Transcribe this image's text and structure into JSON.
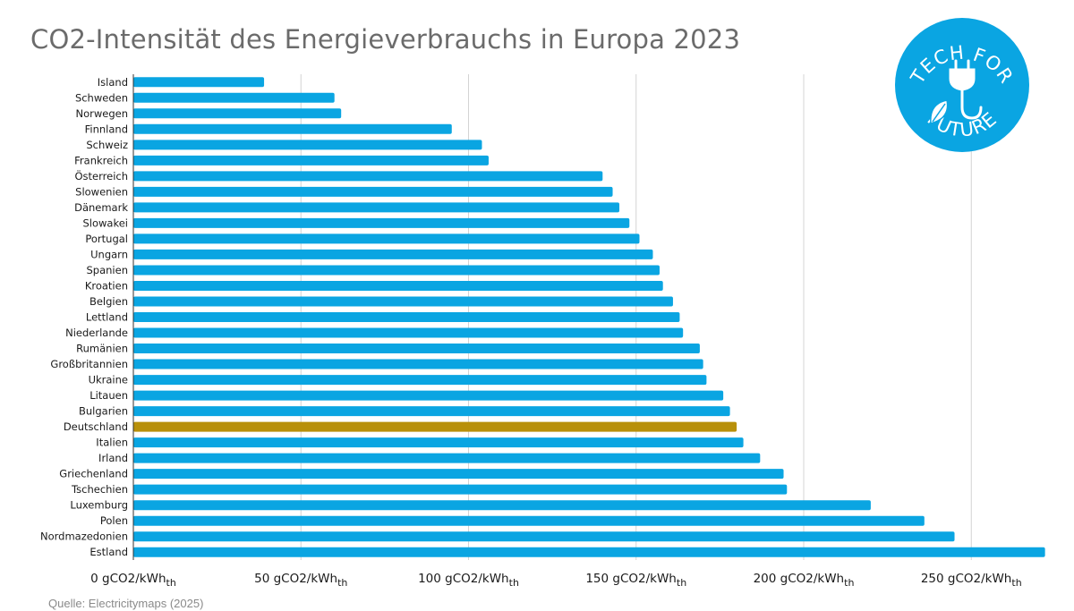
{
  "title": "CO2-Intensität des Energieverbrauchs in Europa 2023",
  "source": "Quelle: Electricitymaps (2025)",
  "logo": {
    "top_text": "TECH FOR",
    "bottom_text": "FUTURE",
    "color": "#0aa5e2"
  },
  "colors": {
    "bar": "#0aa5e2",
    "highlight": "#b8900a",
    "grid": "#d4d4d4",
    "axis": "#333333"
  },
  "chart_data": {
    "type": "bar",
    "orientation": "horizontal",
    "title": "CO2-Intensität des Energieverbrauchs in Europa 2023",
    "xlabel": "",
    "ylabel": "",
    "xlim": [
      0,
      275
    ],
    "grid": true,
    "highlight": "Deutschland",
    "tick_values": [
      0,
      50,
      100,
      150,
      200,
      250
    ],
    "tick_labels": [
      {
        "main": "0 gCO2/kWh",
        "sub": "th"
      },
      {
        "main": "50 gCO2/kWh",
        "sub": "th"
      },
      {
        "main": "100 gCO2/kWh",
        "sub": "th"
      },
      {
        "main": "150 gCO2/kWh",
        "sub": "th"
      },
      {
        "main": "200 gCO2/kWh",
        "sub": "th"
      },
      {
        "main": "250 gCO2/kWh",
        "sub": "th"
      }
    ],
    "categories": [
      "Island",
      "Schweden",
      "Norwegen",
      "Finnland",
      "Schweiz",
      "Frankreich",
      "Österreich",
      "Slowenien",
      "Dänemark",
      "Slowakei",
      "Portugal",
      "Ungarn",
      "Spanien",
      "Kroatien",
      "Belgien",
      "Lettland",
      "Niederlande",
      "Rumänien",
      "Großbritannien",
      "Ukraine",
      "Litauen",
      "Bulgarien",
      "Deutschland",
      "Italien",
      "Irland",
      "Griechenland",
      "Tschechien",
      "Luxemburg",
      "Polen",
      "Nordmazedonien",
      "Estland"
    ],
    "values": [
      39,
      60,
      62,
      95,
      104,
      106,
      140,
      143,
      145,
      148,
      151,
      155,
      157,
      158,
      161,
      163,
      164,
      169,
      170,
      171,
      176,
      178,
      180,
      182,
      187,
      194,
      195,
      220,
      236,
      245,
      272
    ]
  }
}
